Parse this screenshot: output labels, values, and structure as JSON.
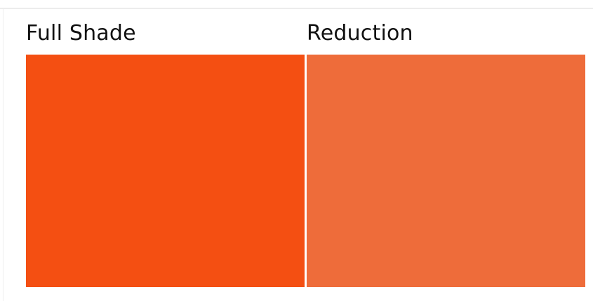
{
  "swatches": [
    {
      "label": "Full Shade",
      "color": "#F44F12"
    },
    {
      "label": "Reduction",
      "color": "#EE6C3A"
    }
  ]
}
